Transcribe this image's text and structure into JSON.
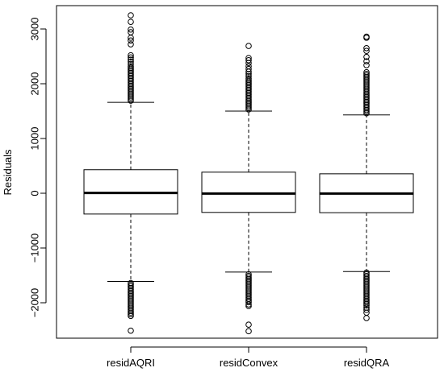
{
  "chart_data": {
    "type": "boxplot",
    "title": "",
    "xlabel": "",
    "ylabel": "Residuals",
    "ylim": [
      -2700,
      3300
    ],
    "yticks": [
      -2000,
      -1000,
      0,
      1000,
      2000,
      3000
    ],
    "ytick_labels": [
      "−2000",
      "−1000",
      "0",
      "1000",
      "2000",
      "3000"
    ],
    "categories": [
      "residAQRI",
      "residConvex",
      "residQRA"
    ],
    "boxes": [
      {
        "name": "residAQRI",
        "q1": -380,
        "median": 5,
        "q3": 430,
        "whisker_low": -1610,
        "whisker_high": 1660,
        "outliers_high": [
          1690,
          1720,
          1750,
          1780,
          1810,
          1840,
          1870,
          1900,
          1930,
          1960,
          1990,
          2020,
          2050,
          2080,
          2110,
          2140,
          2170,
          2200,
          2230,
          2260,
          2290,
          2320,
          2360,
          2400,
          2440,
          2480,
          2520,
          2720,
          2790,
          2840,
          2940,
          2990,
          3130,
          3250
        ],
        "outliers_low": [
          -1640,
          -1670,
          -1700,
          -1730,
          -1760,
          -1790,
          -1820,
          -1850,
          -1880,
          -1910,
          -1940,
          -1970,
          -2000,
          -2030,
          -2060,
          -2090,
          -2120,
          -2150,
          -2180,
          -2210,
          -2240,
          -2510
        ]
      },
      {
        "name": "residConvex",
        "q1": -350,
        "median": -5,
        "q3": 385,
        "whisker_low": -1440,
        "whisker_high": 1500,
        "outliers_high": [
          1530,
          1560,
          1590,
          1620,
          1650,
          1680,
          1710,
          1740,
          1770,
          1800,
          1830,
          1860,
          1890,
          1920,
          1950,
          1980,
          2010,
          2040,
          2070,
          2100,
          2140,
          2180,
          2220,
          2270,
          2320,
          2380,
          2430,
          2470,
          2690
        ],
        "outliers_low": [
          -1480,
          -1510,
          -1540,
          -1570,
          -1600,
          -1630,
          -1660,
          -1690,
          -1720,
          -1750,
          -1780,
          -1810,
          -1840,
          -1870,
          -1900,
          -1930,
          -1960,
          -1990,
          -2030,
          -2060,
          -2400,
          -2520
        ]
      },
      {
        "name": "residQRA",
        "q1": -355,
        "median": -5,
        "q3": 355,
        "whisker_low": -1430,
        "whisker_high": 1430,
        "outliers_high": [
          1460,
          1490,
          1520,
          1550,
          1580,
          1610,
          1640,
          1670,
          1700,
          1730,
          1760,
          1790,
          1820,
          1850,
          1880,
          1910,
          1940,
          1970,
          2000,
          2030,
          2060,
          2090,
          2120,
          2150,
          2180,
          2210,
          2340,
          2410,
          2490,
          2600,
          2650,
          2840,
          2860
        ],
        "outliers_low": [
          -1450,
          -1480,
          -1510,
          -1540,
          -1570,
          -1600,
          -1630,
          -1660,
          -1690,
          -1720,
          -1750,
          -1780,
          -1810,
          -1840,
          -1870,
          -1900,
          -1930,
          -1960,
          -1990,
          -2020,
          -2050,
          -2090,
          -2130,
          -2180,
          -2280
        ]
      }
    ],
    "grid": false,
    "legend": "none"
  }
}
